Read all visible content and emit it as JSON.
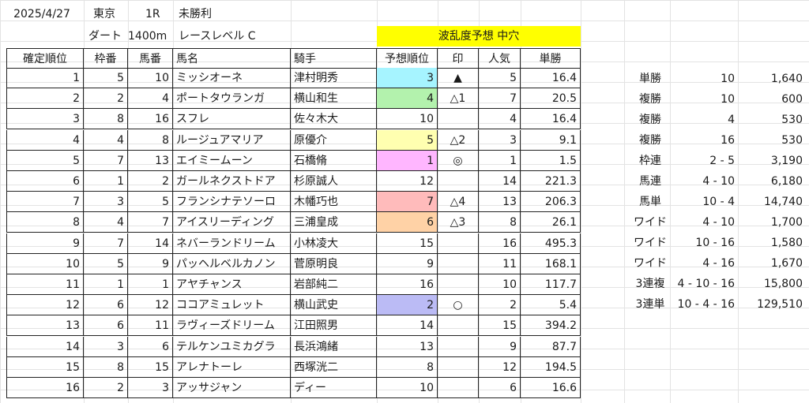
{
  "header": {
    "date": "2025/4/27",
    "venue": "東京",
    "race": "1R",
    "class": "未勝利",
    "surface": "ダート",
    "distance": "1400m",
    "level": "レースレベル C",
    "chaos_label": "波乱度予想 中穴"
  },
  "columns": [
    "確定順位",
    "枠番",
    "馬番",
    "馬名",
    "騎手",
    "予想順位",
    "印",
    "人気",
    "単勝"
  ],
  "colors": {
    "cyan": "#a6f4ff",
    "green": "#b3f2ad",
    "yellow": "#ffffb0",
    "pink": "#ffb6ff",
    "salmon": "#ffbbbb",
    "peach": "#ffd2a6",
    "lavender": "#bbbbf5",
    "highlight": "#ffff00"
  },
  "rows": [
    {
      "rank": "1",
      "waku": "5",
      "umaban": "10",
      "horse": "ミッシオーネ",
      "jockey": "津村明秀",
      "pred": "3",
      "mark": "▲",
      "pop": "5",
      "odds": "16.4",
      "color": "cyan"
    },
    {
      "rank": "2",
      "waku": "2",
      "umaban": "4",
      "horse": "ポートタウランガ",
      "jockey": "横山和生",
      "pred": "4",
      "mark": "△1",
      "pop": "7",
      "odds": "20.5",
      "color": "green"
    },
    {
      "rank": "3",
      "waku": "8",
      "umaban": "16",
      "horse": "スフレ",
      "jockey": "佐々木大",
      "pred": "10",
      "mark": "",
      "pop": "4",
      "odds": "16.4",
      "color": ""
    },
    {
      "rank": "4",
      "waku": "4",
      "umaban": "8",
      "horse": "ルージュアマリア",
      "jockey": "原優介",
      "pred": "5",
      "mark": "△2",
      "pop": "3",
      "odds": "9.1",
      "color": "yellow"
    },
    {
      "rank": "5",
      "waku": "7",
      "umaban": "13",
      "horse": "エイミームーン",
      "jockey": "石橋脩",
      "pred": "1",
      "mark": "◎",
      "pop": "1",
      "odds": "1.5",
      "color": "pink"
    },
    {
      "rank": "6",
      "waku": "1",
      "umaban": "2",
      "horse": "ガールネクストドア",
      "jockey": "杉原誠人",
      "pred": "12",
      "mark": "",
      "pop": "14",
      "odds": "221.3",
      "color": ""
    },
    {
      "rank": "7",
      "waku": "3",
      "umaban": "5",
      "horse": "フランシナテソーロ",
      "jockey": "木幡巧也",
      "pred": "7",
      "mark": "△4",
      "pop": "13",
      "odds": "206.3",
      "color": "salmon"
    },
    {
      "rank": "8",
      "waku": "4",
      "umaban": "7",
      "horse": "アイスリーディング",
      "jockey": "三浦皇成",
      "pred": "6",
      "mark": "△3",
      "pop": "8",
      "odds": "26.1",
      "color": "peach"
    },
    {
      "rank": "9",
      "waku": "7",
      "umaban": "14",
      "horse": "ネバーランドリーム",
      "jockey": "小林凌大",
      "pred": "15",
      "mark": "",
      "pop": "16",
      "odds": "495.3",
      "color": ""
    },
    {
      "rank": "10",
      "waku": "5",
      "umaban": "9",
      "horse": "パッヘルベルカノン",
      "jockey": "菅原明良",
      "pred": "9",
      "mark": "",
      "pop": "11",
      "odds": "168.1",
      "color": ""
    },
    {
      "rank": "11",
      "waku": "1",
      "umaban": "1",
      "horse": "アヤチャンス",
      "jockey": "岩部純二",
      "pred": "16",
      "mark": "",
      "pop": "10",
      "odds": "117.7",
      "color": ""
    },
    {
      "rank": "12",
      "waku": "6",
      "umaban": "12",
      "horse": "ココアミュレット",
      "jockey": "横山武史",
      "pred": "2",
      "mark": "○",
      "pop": "2",
      "odds": "5.4",
      "color": "lavender"
    },
    {
      "rank": "13",
      "waku": "6",
      "umaban": "11",
      "horse": "ラヴィーズドリーム",
      "jockey": "江田照男",
      "pred": "14",
      "mark": "",
      "pop": "15",
      "odds": "394.2",
      "color": ""
    },
    {
      "rank": "14",
      "waku": "3",
      "umaban": "6",
      "horse": "テルケンユミカグラ",
      "jockey": "長浜鴻緒",
      "pred": "13",
      "mark": "",
      "pop": "9",
      "odds": "87.7",
      "color": ""
    },
    {
      "rank": "15",
      "waku": "8",
      "umaban": "15",
      "horse": "アレナトーレ",
      "jockey": "西塚洸二",
      "pred": "8",
      "mark": "",
      "pop": "12",
      "odds": "194.5",
      "color": ""
    },
    {
      "rank": "16",
      "waku": "2",
      "umaban": "3",
      "horse": "アッサジャン",
      "jockey": "ディー",
      "pred": "10",
      "mark": "",
      "pop": "6",
      "odds": "16.6",
      "color": ""
    }
  ],
  "payouts": [
    {
      "type": "単勝",
      "combo": "10",
      "amount": "1,640"
    },
    {
      "type": "複勝",
      "combo": "10",
      "amount": "600"
    },
    {
      "type": "複勝",
      "combo": "4",
      "amount": "530"
    },
    {
      "type": "複勝",
      "combo": "16",
      "amount": "530"
    },
    {
      "type": "枠連",
      "combo": "2 - 5",
      "amount": "3,190"
    },
    {
      "type": "馬連",
      "combo": "4 - 10",
      "amount": "6,180"
    },
    {
      "type": "馬単",
      "combo": "10 - 4",
      "amount": "14,740"
    },
    {
      "type": "ワイド",
      "combo": "4 - 10",
      "amount": "1,700"
    },
    {
      "type": "ワイド",
      "combo": "10 - 16",
      "amount": "1,580"
    },
    {
      "type": "ワイド",
      "combo": "4 - 16",
      "amount": "1,670"
    },
    {
      "type": "3連複",
      "combo": "4 - 10 - 16",
      "amount": "15,800"
    },
    {
      "type": "3連単",
      "combo": "10 - 4 - 16",
      "amount": "129,510"
    }
  ]
}
